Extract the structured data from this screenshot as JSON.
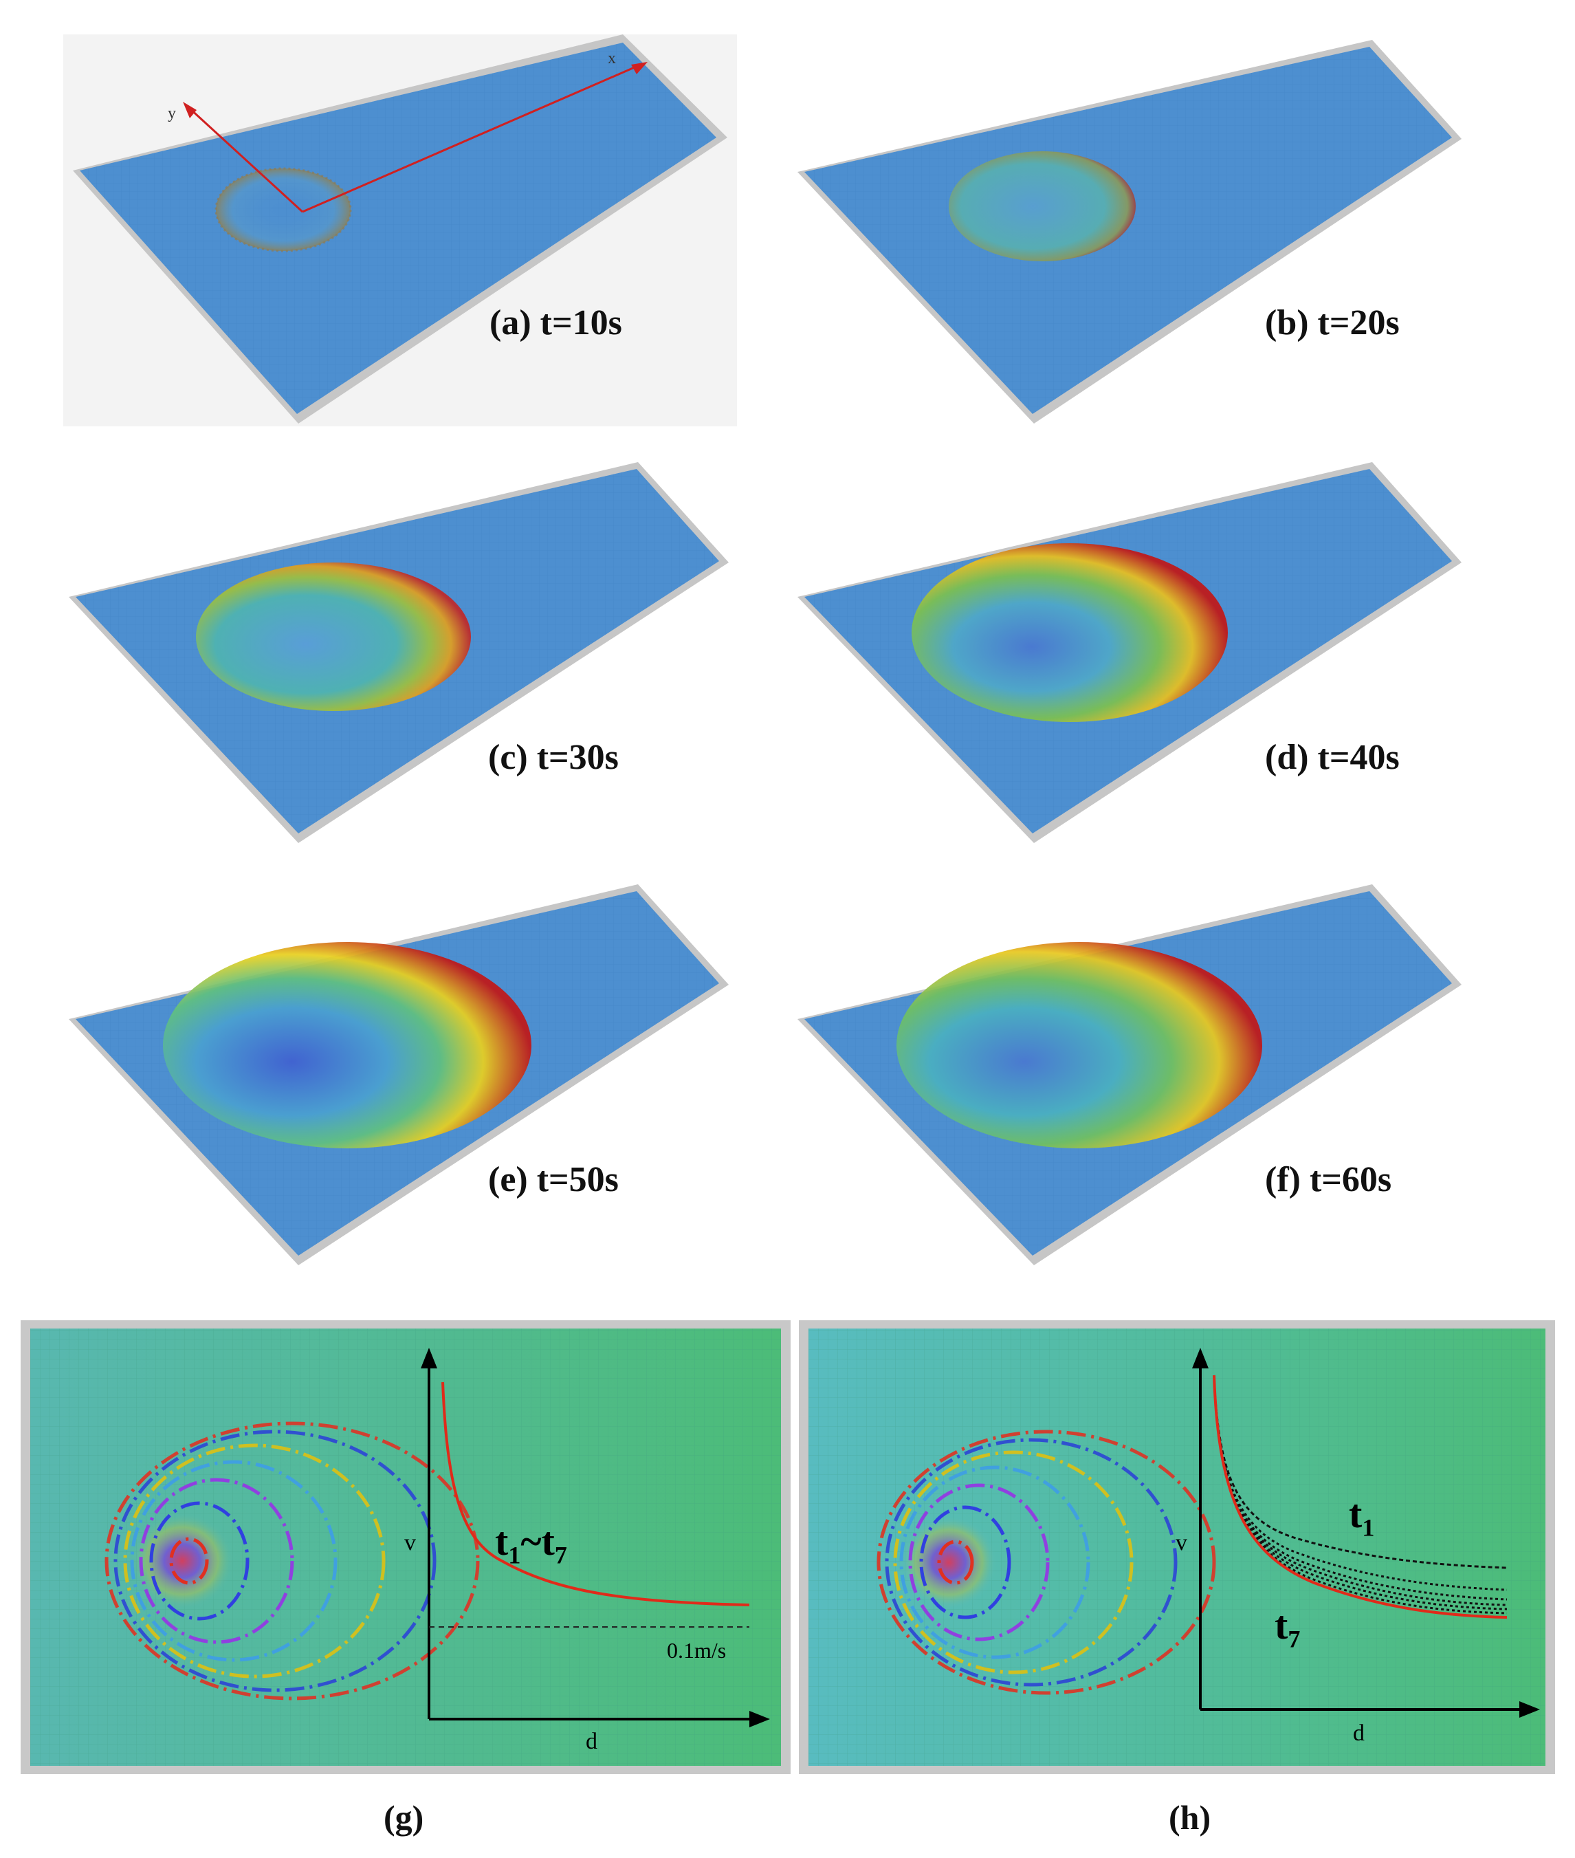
{
  "figure": {
    "panels": [
      {
        "id": "a",
        "caption": "(a) t=10s"
      },
      {
        "id": "b",
        "caption": "(b) t=20s"
      },
      {
        "id": "c",
        "caption": "(c) t=30s"
      },
      {
        "id": "d",
        "caption": "(d) t=40s"
      },
      {
        "id": "e",
        "caption": "(e) t=50s"
      },
      {
        "id": "f",
        "caption": "(f) t=60s"
      }
    ],
    "axes_labels": {
      "x": "x",
      "y": "y"
    },
    "bottom_panels": [
      {
        "id": "g",
        "label": "(g)",
        "ylabel": "v",
        "xlabel": "d",
        "curve_label_main": "t",
        "curve_label_sub1": "1",
        "curve_label_tilde": "~t",
        "curve_label_sub2": "7",
        "reference_label": "0.1m/s"
      },
      {
        "id": "h",
        "label": "(h)",
        "ylabel": "v",
        "xlabel": "d",
        "t1_main": "t",
        "t1_sub": "1",
        "t7_main": "t",
        "t7_sub": "7"
      }
    ]
  },
  "colors": {
    "plate": "#4d8fd0",
    "plate_edge": "#c8c8c8",
    "grid": "#3d7cc0",
    "bg_panel_a": "#f3f3f3",
    "bottom_bg": "#4fb89a",
    "frame": "#c8c8c8",
    "curve_red": "#e02a1a"
  }
}
